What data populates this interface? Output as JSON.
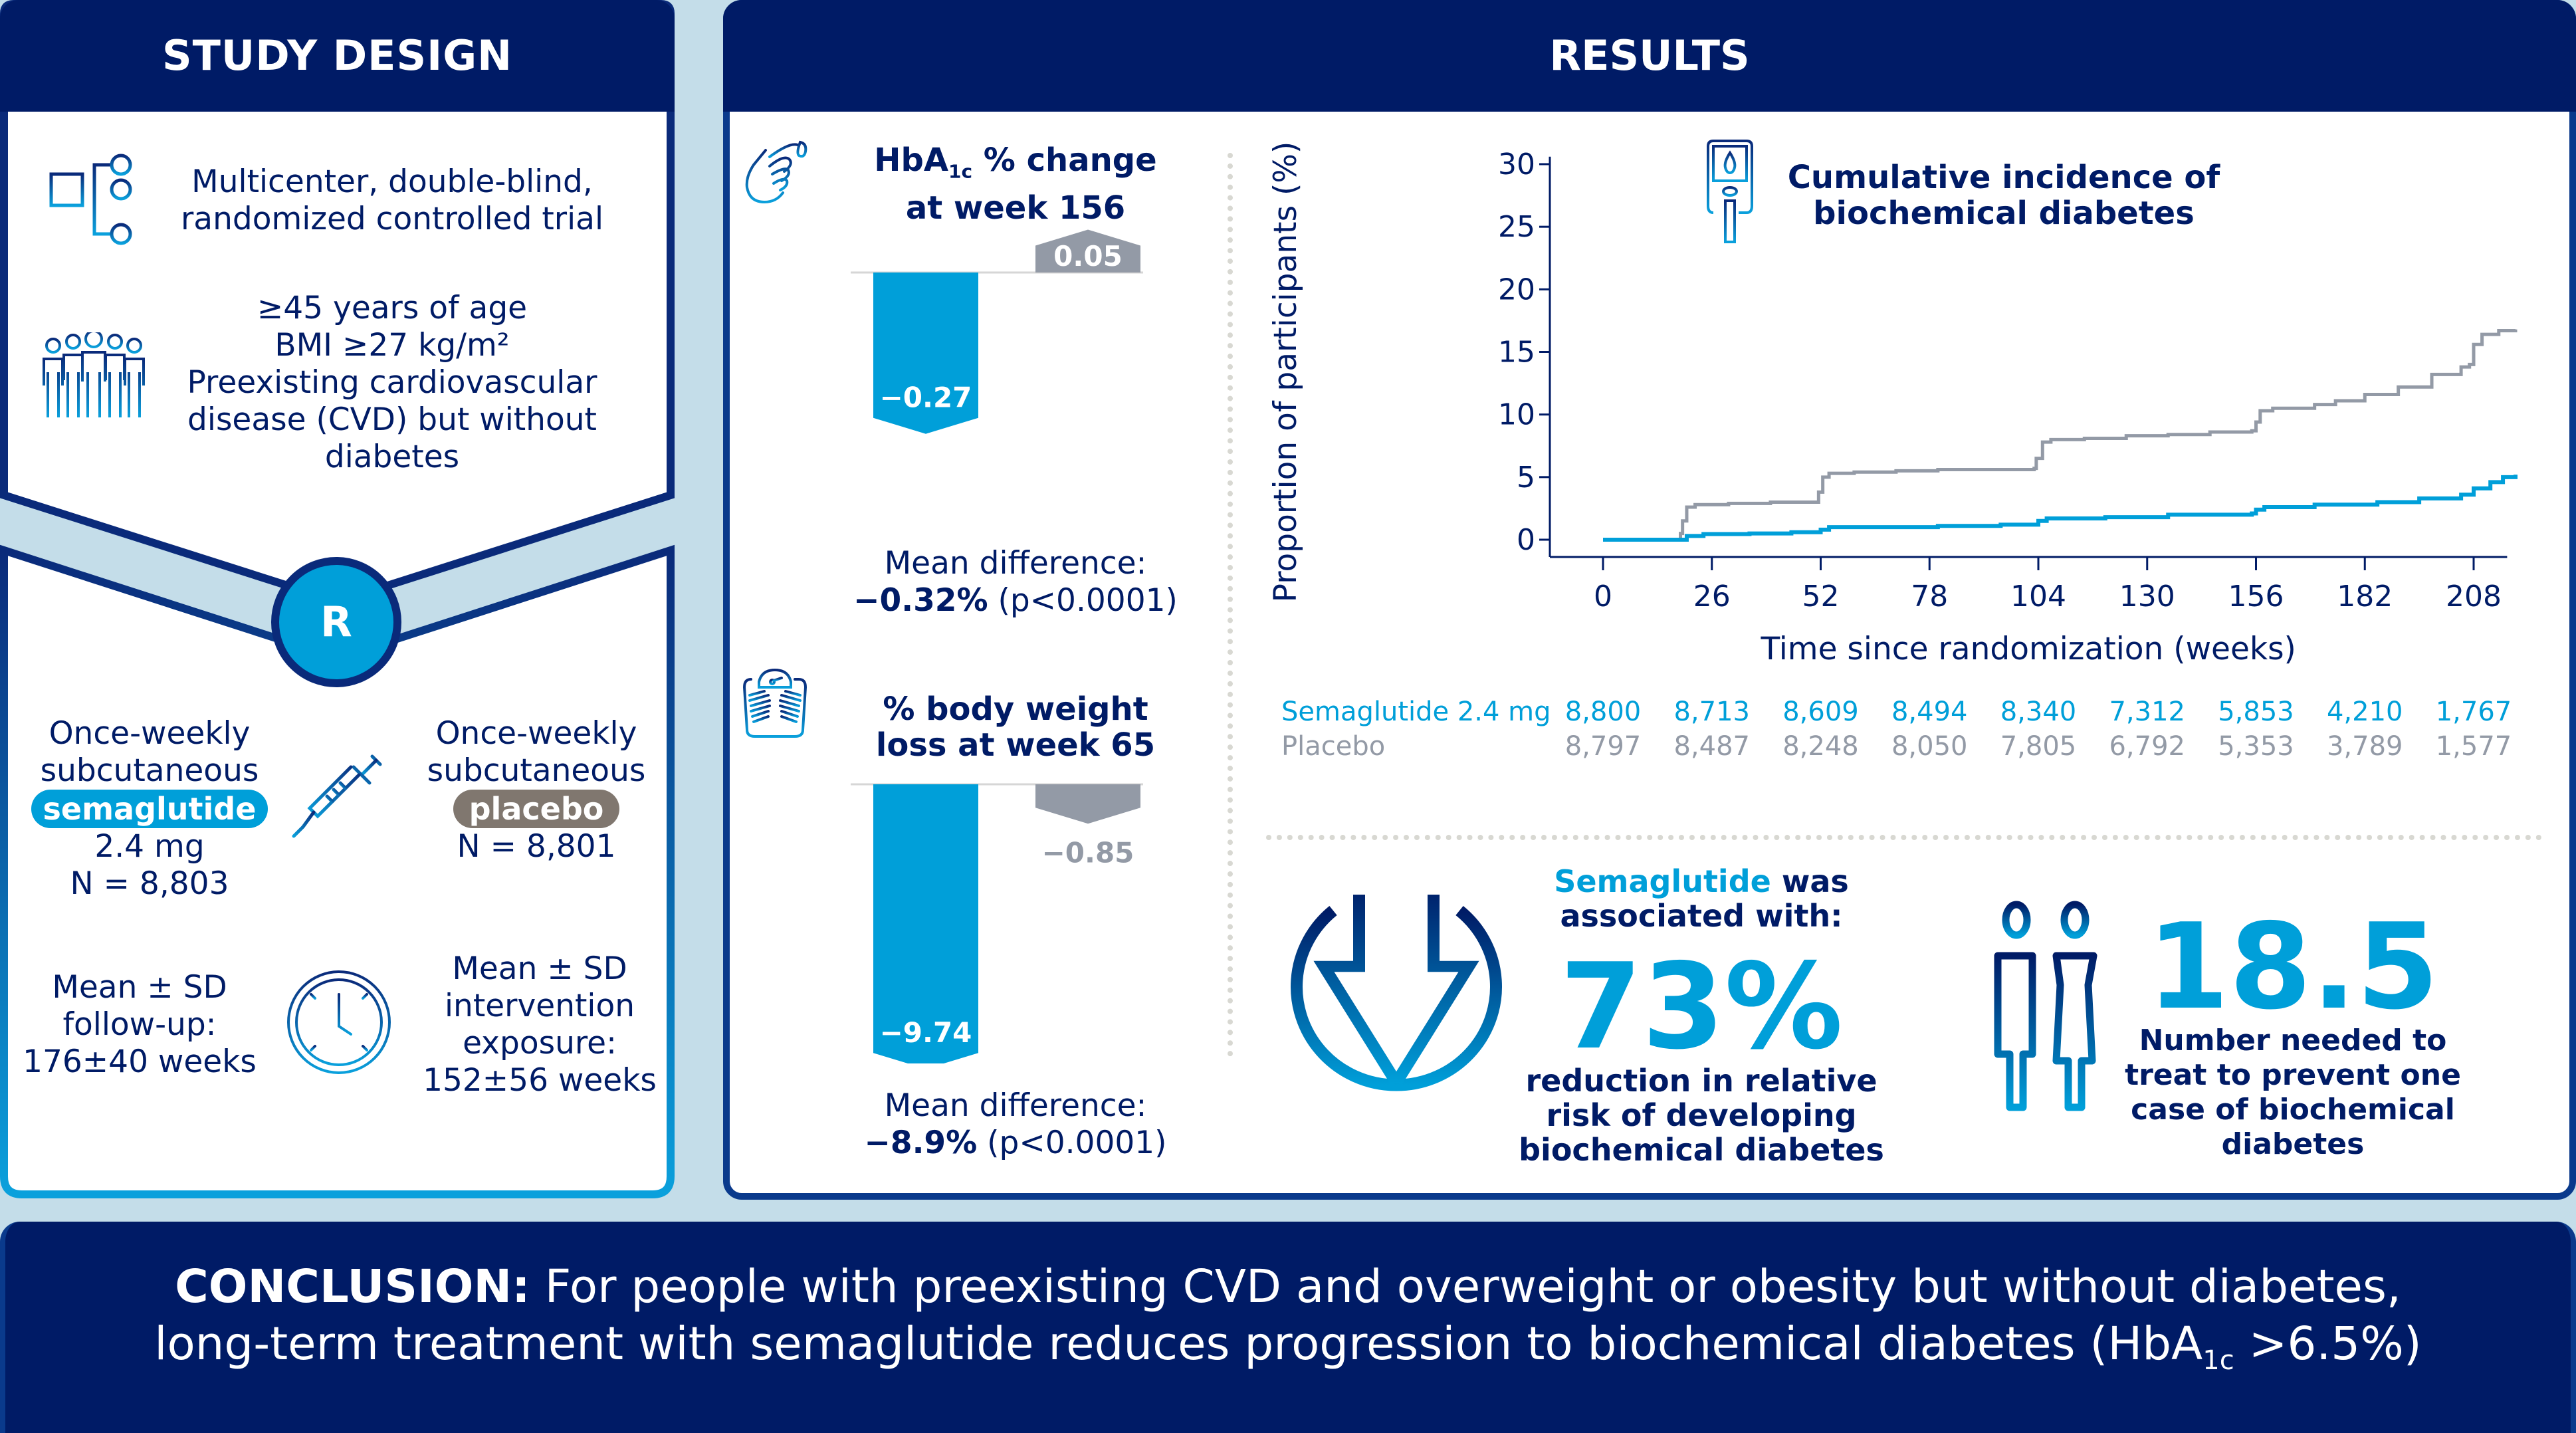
{
  "study_design": {
    "title": "STUDY DESIGN",
    "trial_type": [
      "Multicenter, double-blind,",
      "randomized controlled trial"
    ],
    "population": [
      "≥45 years of age",
      "BMI ≥27 kg/m²",
      "Preexisting cardiovascular",
      "disease (CVD) but without",
      "diabetes"
    ],
    "randomization_label": "R",
    "arm_semaglutide": {
      "line1": "Once-weekly",
      "line2": "subcutaneous",
      "drug": "semaglutide",
      "dose": "2.4 mg",
      "n": "N = 8,803"
    },
    "arm_placebo": {
      "line1": "Once-weekly",
      "line2": "subcutaneous",
      "drug": "placebo",
      "n": "N = 8,801"
    },
    "follow_up": [
      "Mean ± SD",
      "follow-up:",
      "176±40 weeks"
    ],
    "exposure": [
      "Mean ± SD",
      "intervention",
      "exposure:",
      "152±56 weeks"
    ],
    "colors": {
      "semaglutide": "#009fd9",
      "placebo": "#80776f",
      "navy": "#001b66"
    }
  },
  "results": {
    "title": "RESULTS",
    "hba1c": {
      "title_pre": "HbA",
      "title_sub": "1c",
      "title_post": " % change",
      "title_line2": "at week 156",
      "sema_label": "−0.27",
      "placebo_label": "0.05",
      "diff_label": "Mean difference:",
      "diff_value": "−0.32%",
      "diff_p": " (p<0.0001)"
    },
    "weight": {
      "title_line1": "% body weight",
      "title_line2": "loss at week 65",
      "sema_label": "−9.74",
      "placebo_label": "−0.85",
      "diff_label": "Mean difference:",
      "diff_value": "−8.9%",
      "diff_p": " (p<0.0001)"
    },
    "km_title": [
      "Cumulative incidence of",
      "biochemical diabetes"
    ],
    "number_at_risk": {
      "rows": [
        {
          "label": "Semaglutide 2.4 mg",
          "values": [
            "8,800",
            "8,713",
            "8,609",
            "8,494",
            "8,340",
            "7,312",
            "5,853",
            "4,210",
            "1,767"
          ]
        },
        {
          "label": "Placebo",
          "values": [
            "8,797",
            "8,487",
            "8,248",
            "8,050",
            "7,805",
            "6,792",
            "5,353",
            "3,789",
            "1,577"
          ]
        }
      ]
    },
    "rrr": {
      "line1_highlight": "Semaglutide",
      "line1_rest": " was",
      "line2": "associated with:",
      "big": "73%",
      "desc": [
        "reduction in relative",
        "risk of developing",
        "biochemical diabetes"
      ]
    },
    "nnt": {
      "big": "18.5",
      "desc": [
        "Number needed to",
        "treat to prevent one",
        "case of biochemical",
        "diabetes"
      ]
    }
  },
  "conclusion": {
    "label": "CONCLUSION:",
    "line1_rest": " For people with preexisting CVD and overweight or obesity but without diabetes,",
    "line2_pre": "long-term treatment with semaglutide reduces progression to biochemical diabetes (HbA",
    "line2_sub": "1c",
    "line2_post": " >6.5%)"
  },
  "chart_data": [
    {
      "type": "bar",
      "title": "HbA1c % change at week 156",
      "categories": [
        "Semaglutide 2.4 mg",
        "Placebo"
      ],
      "values": [
        -0.27,
        0.05
      ],
      "colors": [
        "#009fd9",
        "#939aa6"
      ],
      "annotation": "Mean difference: −0.32% (p<0.0001)"
    },
    {
      "type": "bar",
      "title": "% body weight loss at week 65",
      "categories": [
        "Semaglutide 2.4 mg",
        "Placebo"
      ],
      "values": [
        -9.74,
        -0.85
      ],
      "colors": [
        "#009fd9",
        "#939aa6"
      ],
      "annotation": "Mean difference: −8.9% (p<0.0001)"
    },
    {
      "type": "line",
      "title": "Cumulative incidence of biochemical diabetes",
      "xlabel": "Time since randomization (weeks)",
      "ylabel": "Proportion of participants (%)",
      "xlim": [
        0,
        216
      ],
      "ylim": [
        0,
        30
      ],
      "xticks": [
        0,
        26,
        52,
        78,
        104,
        130,
        156,
        182,
        208
      ],
      "yticks": [
        0,
        5,
        10,
        15,
        20,
        25,
        30
      ],
      "grid": false,
      "series": [
        {
          "name": "Placebo",
          "color": "#939aa6",
          "points": [
            [
              0,
              0
            ],
            [
              18,
              0
            ],
            [
              18.5,
              0.5
            ],
            [
              19,
              1.5
            ],
            [
              20,
              2.6
            ],
            [
              22,
              2.8
            ],
            [
              30,
              2.9
            ],
            [
              40,
              3.0
            ],
            [
              51,
              3.0
            ],
            [
              51.5,
              3.8
            ],
            [
              52.5,
              5.0
            ],
            [
              54,
              5.3
            ],
            [
              60,
              5.4
            ],
            [
              70,
              5.5
            ],
            [
              80,
              5.6
            ],
            [
              90,
              5.6
            ],
            [
              103,
              5.7
            ],
            [
              103.5,
              6.5
            ],
            [
              105,
              7.8
            ],
            [
              107,
              8.0
            ],
            [
              115,
              8.1
            ],
            [
              125,
              8.3
            ],
            [
              135,
              8.4
            ],
            [
              145,
              8.6
            ],
            [
              155,
              8.7
            ],
            [
              156,
              9.4
            ],
            [
              157,
              10.3
            ],
            [
              160,
              10.5
            ],
            [
              170,
              10.8
            ],
            [
              175,
              11.1
            ],
            [
              182,
              11.6
            ],
            [
              190,
              12.2
            ],
            [
              198,
              13.2
            ],
            [
              205,
              13.8
            ],
            [
              207,
              14.0
            ],
            [
              208,
              15.6
            ],
            [
              210,
              16.4
            ],
            [
              214,
              16.7
            ],
            [
              218,
              16.8
            ]
          ]
        },
        {
          "name": "Semaglutide 2.4 mg",
          "color": "#009fd9",
          "points": [
            [
              0,
              0
            ],
            [
              18,
              0
            ],
            [
              20,
              0.3
            ],
            [
              24,
              0.45
            ],
            [
              35,
              0.5
            ],
            [
              45,
              0.6
            ],
            [
              51,
              0.6
            ],
            [
              52,
              0.8
            ],
            [
              54,
              1.0
            ],
            [
              65,
              1.0
            ],
            [
              80,
              1.1
            ],
            [
              95,
              1.2
            ],
            [
              103,
              1.2
            ],
            [
              104,
              1.5
            ],
            [
              106,
              1.7
            ],
            [
              120,
              1.8
            ],
            [
              135,
              2.0
            ],
            [
              155,
              2.1
            ],
            [
              156,
              2.4
            ],
            [
              158,
              2.6
            ],
            [
              170,
              2.8
            ],
            [
              185,
              3.0
            ],
            [
              195,
              3.3
            ],
            [
              205,
              3.6
            ],
            [
              208,
              4.1
            ],
            [
              212,
              4.6
            ],
            [
              215,
              5.0
            ],
            [
              218,
              5.2
            ]
          ]
        }
      ],
      "number_at_risk_weeks": [
        0,
        26,
        52,
        78,
        104,
        130,
        156,
        182,
        208
      ]
    }
  ]
}
